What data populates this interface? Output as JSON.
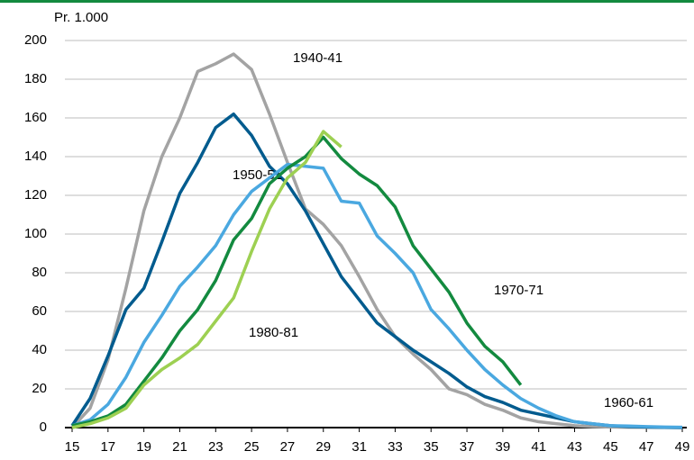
{
  "chart_data": {
    "type": "line",
    "y_axis_label": "Pr. 1.000",
    "x": [
      15,
      16,
      17,
      18,
      19,
      20,
      21,
      22,
      23,
      24,
      25,
      26,
      27,
      28,
      29,
      30,
      31,
      32,
      33,
      34,
      35,
      36,
      37,
      38,
      39,
      40,
      41,
      42,
      43,
      44,
      45,
      46,
      47,
      48,
      49
    ],
    "xlim": [
      15,
      49
    ],
    "xticks": [
      15,
      17,
      19,
      21,
      23,
      25,
      27,
      29,
      31,
      33,
      35,
      37,
      39,
      41,
      43,
      45,
      47,
      49
    ],
    "ylim": [
      0,
      200
    ],
    "yticks": [
      0,
      20,
      40,
      60,
      80,
      100,
      120,
      140,
      160,
      180,
      200
    ],
    "grid": true,
    "series": [
      {
        "name": "1940-41",
        "color": "#a3a3a3",
        "values": [
          0,
          10,
          35,
          72,
          112,
          140,
          160,
          184,
          188,
          193,
          185,
          162,
          137,
          113,
          105,
          94,
          78,
          61,
          47,
          38,
          30,
          20,
          17,
          12,
          9,
          5,
          3,
          2,
          1,
          0.5,
          0.3,
          0.2,
          0.1,
          0.1,
          0
        ]
      },
      {
        "name": "1950-51",
        "color": "#005b8e",
        "values": [
          1,
          15,
          37,
          61,
          72,
          96,
          121,
          137,
          155,
          162,
          151,
          135,
          126,
          112,
          95,
          78,
          66,
          54,
          47,
          40,
          34,
          28,
          21,
          16,
          13,
          9,
          7,
          5,
          3,
          2,
          1,
          0.5,
          0.3,
          0.1,
          0
        ]
      },
      {
        "name": "1960-61",
        "color": "#4aa8e0",
        "values": [
          1,
          4,
          12,
          26,
          44,
          58,
          73,
          83,
          94,
          110,
          122,
          129,
          136,
          135,
          134,
          117,
          116,
          99,
          90,
          80,
          61,
          51,
          40,
          30,
          22,
          15,
          10,
          6,
          3,
          2,
          1,
          0.8,
          0.5,
          0.3,
          0.2
        ]
      },
      {
        "name": "1970-71",
        "color": "#138a3f",
        "values": [
          1,
          3,
          6,
          12,
          24,
          36,
          50,
          61,
          76,
          97,
          108,
          126,
          134,
          140,
          150,
          139,
          131,
          125,
          114,
          94,
          82,
          70,
          54,
          42,
          34,
          22,
          null,
          null,
          null,
          null,
          null,
          null,
          null,
          null,
          null
        ]
      },
      {
        "name": "1980-81",
        "color": "#9dd052",
        "values": [
          0,
          2,
          5,
          10,
          22,
          30,
          36,
          43,
          55,
          67,
          91,
          113,
          129,
          137,
          153,
          145,
          null,
          null,
          null,
          null,
          null,
          null,
          null,
          null,
          null,
          null,
          null,
          null,
          null,
          null,
          null,
          null,
          null,
          null,
          null
        ]
      }
    ]
  }
}
